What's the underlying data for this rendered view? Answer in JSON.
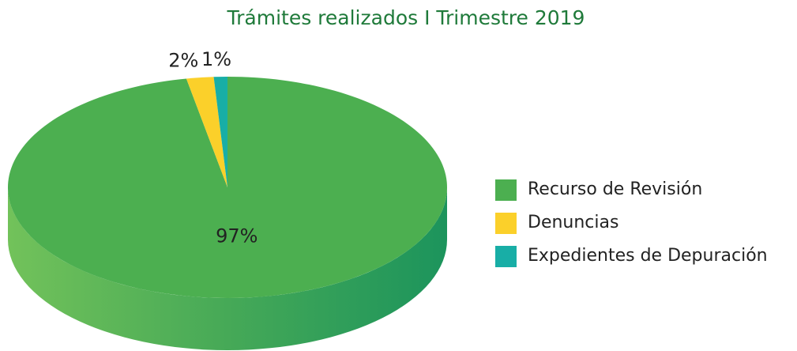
{
  "chart_data": {
    "type": "pie",
    "title": "Trámites realizados I Trimestre 2019",
    "categories": [
      "Recurso de Revisión",
      "Denuncias",
      "Expedientes de Depuración"
    ],
    "values": [
      97,
      2,
      1
    ],
    "value_labels": [
      "97%",
      "2%",
      "1%"
    ],
    "colors": [
      "#4caf50",
      "#fbd02a",
      "#18aea6"
    ],
    "legend": "right"
  }
}
